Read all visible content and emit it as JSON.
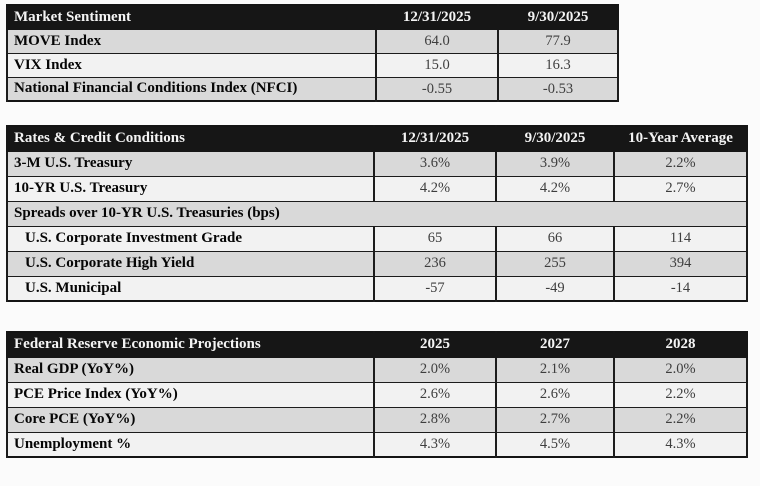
{
  "colors": {
    "header_bg": "#161616",
    "header_text": "#f4f4f4",
    "row_gray": "#d9d9d9",
    "row_light": "#f2f2f2",
    "border": "#1c1c1c",
    "label_text": "#060606",
    "value_text": "#3e3e3e"
  },
  "tables": [
    {
      "title": "Market Sentiment",
      "header": [
        "Market Sentiment",
        "12/31/2025",
        "9/30/2025"
      ],
      "rows": [
        {
          "label": "MOVE Index",
          "values": [
            "64.0",
            "77.9"
          ]
        },
        {
          "label": "VIX Index",
          "values": [
            "15.0",
            "16.3"
          ]
        },
        {
          "label": "National Financial Conditions Index (NFCI)",
          "values": [
            "-0.55",
            "-0.53"
          ]
        }
      ]
    },
    {
      "title": "Rates & Credit Conditions",
      "header": [
        "Rates & Credit Conditions",
        "12/31/2025",
        "9/30/2025",
        "10-Year Average"
      ],
      "rows": [
        {
          "label": "3-M U.S. Treasury",
          "values": [
            "3.6%",
            "3.9%",
            "2.2%"
          ]
        },
        {
          "label": "10-YR U.S. Treasury",
          "values": [
            "4.2%",
            "4.2%",
            "2.7%"
          ]
        },
        {
          "label": "Spreads over 10-YR U.S. Treasuries (bps)",
          "section": true,
          "values": []
        },
        {
          "label": "U.S. Corporate Investment Grade",
          "indent": true,
          "values": [
            "65",
            "66",
            "114"
          ]
        },
        {
          "label": "U.S. Corporate High Yield",
          "indent": true,
          "values": [
            "236",
            "255",
            "394"
          ]
        },
        {
          "label": "U.S. Municipal",
          "indent": true,
          "values": [
            "-57",
            "-49",
            "-14"
          ]
        }
      ]
    },
    {
      "title": "Federal Reserve Economic Projections",
      "header": [
        "Federal Reserve Economic Projections",
        "2025",
        "2027",
        "2028"
      ],
      "rows": [
        {
          "label": "Real GDP (YoY%)",
          "values": [
            "2.0%",
            "2.1%",
            "2.0%"
          ]
        },
        {
          "label": "PCE Price Index (YoY%)",
          "values": [
            "2.6%",
            "2.6%",
            "2.2%"
          ]
        },
        {
          "label": "Core PCE (YoY%)",
          "values": [
            "2.8%",
            "2.7%",
            "2.2%"
          ]
        },
        {
          "label": "Unemployment %",
          "values": [
            "4.3%",
            "4.5%",
            "4.3%"
          ]
        }
      ]
    }
  ]
}
